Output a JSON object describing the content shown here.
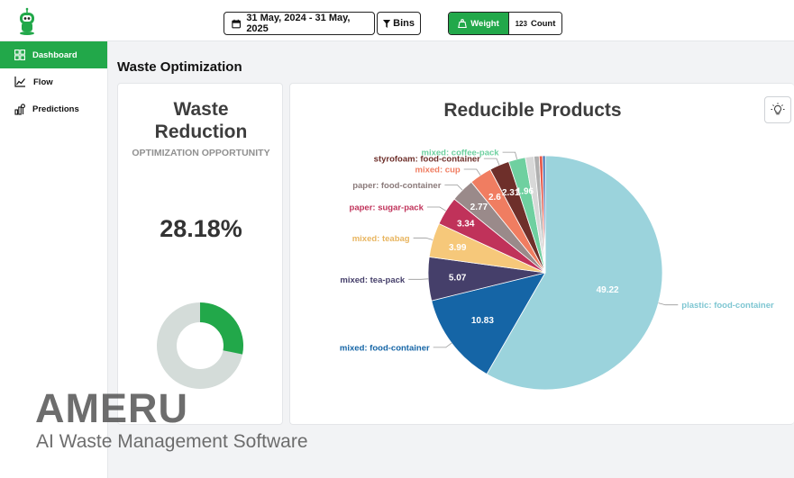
{
  "header": {
    "logo": "robot-logo-icon",
    "date_range": "31 May, 2024 - 31 May, 2025",
    "bins_label": "Bins",
    "toggle": {
      "weight_label": "Weight",
      "count_label": "Count",
      "count_prefix": "123"
    },
    "accent_color": "#22a84a"
  },
  "sidebar": {
    "items": [
      {
        "label": "Dashboard",
        "icon": "grid-icon",
        "active": true
      },
      {
        "label": "Flow",
        "icon": "line-chart-icon",
        "active": false
      },
      {
        "label": "Predictions",
        "icon": "predictions-icon",
        "active": false
      }
    ]
  },
  "page": {
    "title": "Waste Optimization"
  },
  "waste_card": {
    "title_line1": "Waste",
    "title_line2": "Reduction",
    "subtitle": "OPTIMIZATION OPPORTUNITY",
    "value": "28.18%",
    "fraction": 0.2818,
    "fill_color": "#22a84a",
    "track_color": "#d4dcd9"
  },
  "chart_data": {
    "type": "pie",
    "title": "Reducible Products",
    "unit": "%",
    "slices": [
      {
        "label": "plastic: food-container",
        "value": 49.22,
        "color": "#9bd3dc",
        "value_label": "49.22"
      },
      {
        "label": "mixed: food-container",
        "value": 10.83,
        "color": "#1565a6",
        "value_label": "10.83"
      },
      {
        "label": "mixed: tea-pack",
        "value": 5.07,
        "color": "#453f6a",
        "value_label": "5.07"
      },
      {
        "label": "mixed: teabag",
        "value": 3.99,
        "color": "#f6c87a",
        "value_label": "3.99"
      },
      {
        "label": "paper: sugar-pack",
        "value": 3.34,
        "color": "#c0325a",
        "value_label": "3.34"
      },
      {
        "label": "paper: food-container",
        "value": 2.77,
        "color": "#9a8a8a",
        "value_label": "2.77"
      },
      {
        "label": "mixed: cup",
        "value": 2.6,
        "color": "#f07d61",
        "value_label": "2.6"
      },
      {
        "label": "styrofoam: food-container",
        "value": 2.31,
        "color": "#6e2f2a",
        "value_label": "2.31"
      },
      {
        "label": "mixed: coffee-pack",
        "value": 1.96,
        "color": "#6fd0a0",
        "value_label": "1.96"
      },
      {
        "label": "",
        "value": 1.0,
        "color": "#d8d8d8",
        "value_label": ""
      },
      {
        "label": "",
        "value": 0.6,
        "color": "#b0b0b0",
        "value_label": ""
      },
      {
        "label": "",
        "value": 0.4,
        "color": "#e85a4a",
        "value_label": ""
      },
      {
        "label": "",
        "value": 0.3,
        "color": "#3a6bb0",
        "value_label": ""
      }
    ],
    "value_label_indices": [
      0,
      1,
      2,
      3,
      4,
      5,
      6,
      7,
      8
    ],
    "labeled_indices": [
      0,
      1,
      2,
      3,
      4,
      5,
      6,
      7,
      8
    ],
    "label_colors": {
      "plastic: food-container": "#7ec6d2",
      "mixed: food-container": "#1565a6",
      "mixed: tea-pack": "#453f6a",
      "mixed: teabag": "#e8b560",
      "paper: sugar-pack": "#c0325a",
      "paper: food-container": "#8a7a7a",
      "mixed: cup": "#f07d61",
      "styrofoam: food-container": "#6e2f2a",
      "mixed: coffee-pack": "#6fd0a0"
    },
    "start_angle_deg": -90
  },
  "watermark": {
    "title": "AMERU",
    "subtitle": "AI Waste Management Software"
  }
}
